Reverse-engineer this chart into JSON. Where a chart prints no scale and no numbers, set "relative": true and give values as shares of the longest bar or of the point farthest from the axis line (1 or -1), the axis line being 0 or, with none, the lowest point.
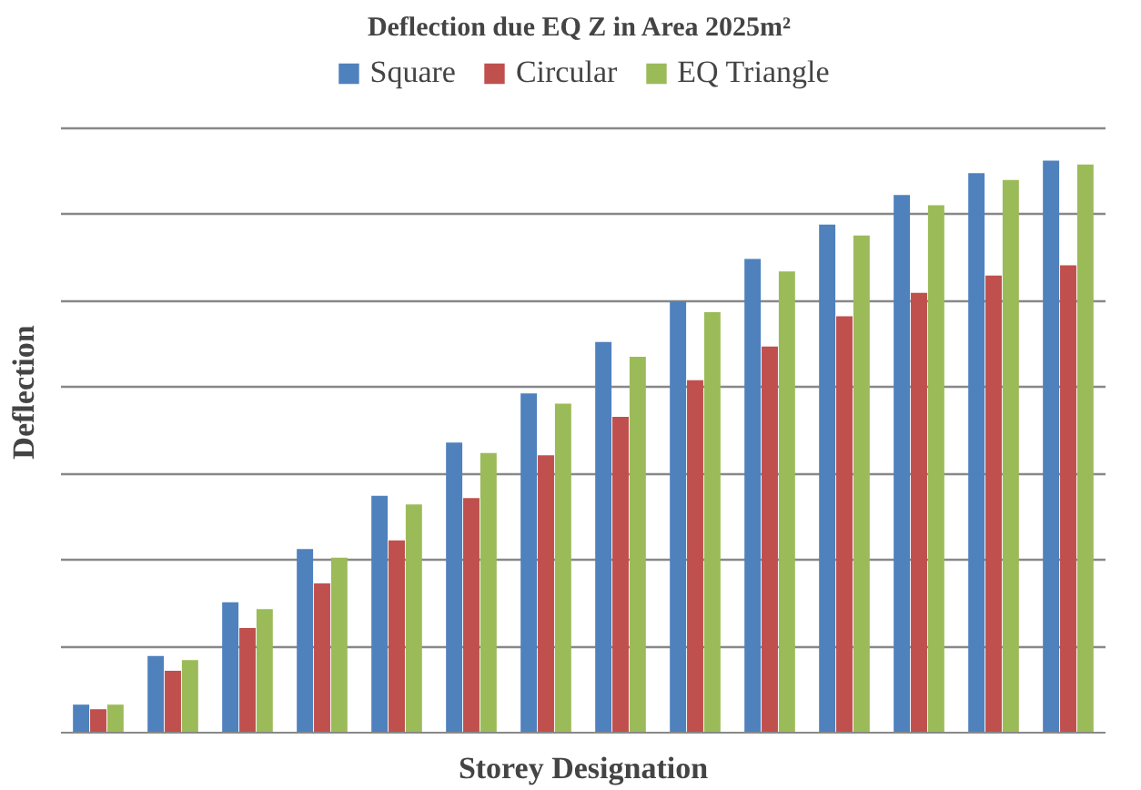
{
  "chart_data": {
    "type": "bar",
    "title": "Deflection due  EQ Z in Area 2025m²",
    "xlabel": "Storey Designation",
    "ylabel": "Deflection",
    "relative": true,
    "grid": "y",
    "legend": "top",
    "categories": [
      null,
      null,
      null,
      null,
      null,
      null,
      null,
      null,
      null,
      null,
      null,
      null,
      null,
      null
    ],
    "series": [
      {
        "name": "Square",
        "color": "#4f81bd",
        "values": [
          0.049,
          0.134,
          0.228,
          0.321,
          0.414,
          0.507,
          0.593,
          0.683,
          0.754,
          0.828,
          0.888,
          0.94,
          0.978,
          1.0
        ]
      },
      {
        "name": "Circular",
        "color": "#c0504d",
        "values": [
          0.041,
          0.108,
          0.183,
          0.261,
          0.336,
          0.41,
          0.485,
          0.552,
          0.616,
          0.675,
          0.728,
          0.769,
          0.799,
          0.817
        ]
      },
      {
        "name": "EQ Triangle",
        "color": "#9bbb59",
        "values": [
          0.049,
          0.127,
          0.216,
          0.306,
          0.399,
          0.489,
          0.575,
          0.657,
          0.735,
          0.806,
          0.869,
          0.922,
          0.966,
          0.993
        ]
      }
    ]
  }
}
